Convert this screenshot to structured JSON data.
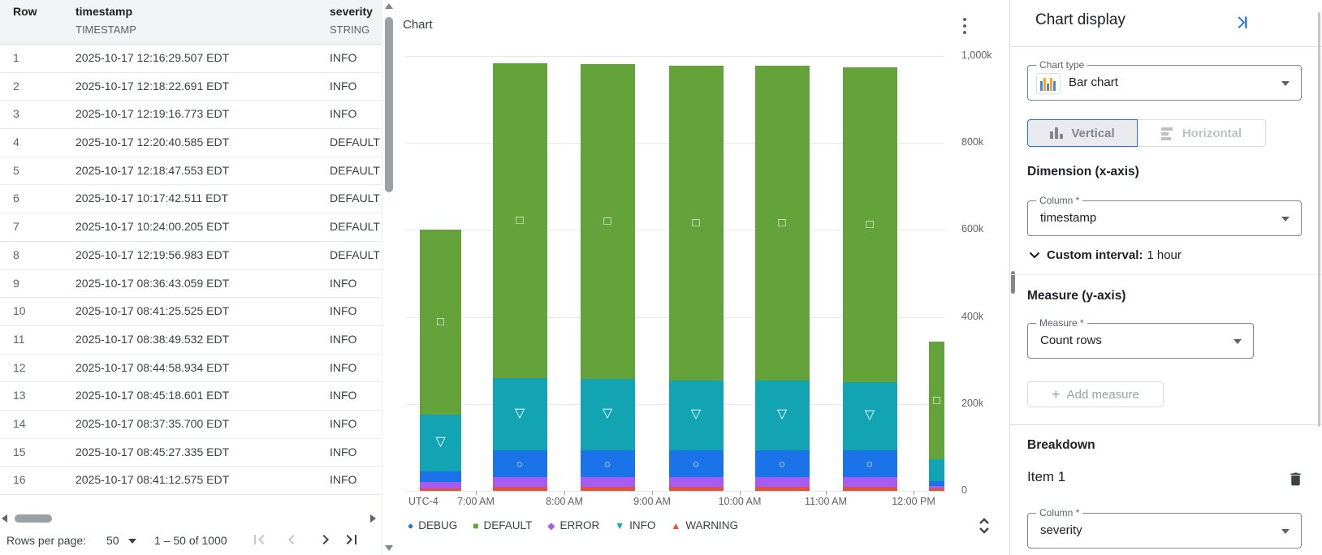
{
  "accent_color": "#1a73e8",
  "table": {
    "columns": [
      {
        "name": "Row",
        "type": ""
      },
      {
        "name": "timestamp",
        "type": "TIMESTAMP"
      },
      {
        "name": "severity",
        "type": "STRING"
      }
    ],
    "rows": [
      [
        "1",
        "2025-10-17 12:16:29.507 EDT",
        "INFO"
      ],
      [
        "2",
        "2025-10-17 12:18:22.691 EDT",
        "INFO"
      ],
      [
        "3",
        "2025-10-17 12:19:16.773 EDT",
        "INFO"
      ],
      [
        "4",
        "2025-10-17 12:20:40.585 EDT",
        "DEFAULT"
      ],
      [
        "5",
        "2025-10-17 12:18:47.553 EDT",
        "DEFAULT"
      ],
      [
        "6",
        "2025-10-17 10:17:42.511 EDT",
        "DEFAULT"
      ],
      [
        "7",
        "2025-10-17 10:24:00.205 EDT",
        "DEFAULT"
      ],
      [
        "8",
        "2025-10-17 12:19:56.983 EDT",
        "DEFAULT"
      ],
      [
        "9",
        "2025-10-17 08:36:43.059 EDT",
        "INFO"
      ],
      [
        "10",
        "2025-10-17 08:41:25.525 EDT",
        "INFO"
      ],
      [
        "11",
        "2025-10-17 08:38:49.532 EDT",
        "INFO"
      ],
      [
        "12",
        "2025-10-17 08:44:58.934 EDT",
        "INFO"
      ],
      [
        "13",
        "2025-10-17 08:45:18.601 EDT",
        "INFO"
      ],
      [
        "14",
        "2025-10-17 08:37:35.700 EDT",
        "INFO"
      ],
      [
        "15",
        "2025-10-17 08:45:27.335 EDT",
        "INFO"
      ],
      [
        "16",
        "2025-10-17 08:41:12.575 EDT",
        "INFO"
      ]
    ],
    "pagination": {
      "rows_per_page_label": "Rows per page:",
      "rows_per_page_value": "50",
      "range_text": "1 – 50 of 1000"
    }
  },
  "chart_panel": {
    "title": "Chart"
  },
  "chart_data": {
    "type": "bar",
    "stacked": true,
    "title": "Chart",
    "x_axis_note": "UTC-4",
    "categories": [
      "6:00 AM",
      "7:00 AM",
      "8:00 AM",
      "9:00 AM",
      "10:00 AM",
      "11:00 AM",
      "12:00 PM"
    ],
    "x_tick_labels": [
      "7:00 AM",
      "8:00 AM",
      "9:00 AM",
      "10:00 AM",
      "11:00 AM",
      "12:00 PM"
    ],
    "interval": "1 hour",
    "unit": "thousands of rows (k)",
    "ylim_k": [
      0,
      1000
    ],
    "y_ticks_k": [
      0,
      200,
      400,
      600,
      800,
      1000
    ],
    "y_tick_labels": [
      "0",
      "200k",
      "400k",
      "600k",
      "800k",
      "1,000k"
    ],
    "grid": true,
    "legend_position": "bottom",
    "stack_order_bottom_to_top": [
      "WARNING",
      "ERROR",
      "DEBUG",
      "INFO",
      "DEFAULT"
    ],
    "series": [
      {
        "name": "DEBUG",
        "color": "#1a73e8",
        "marker": "circle",
        "values_k": [
          25,
          62,
          62,
          62,
          62,
          62,
          11
        ]
      },
      {
        "name": "DEFAULT",
        "color": "#63a33a",
        "marker": "square",
        "values_k": [
          425,
          724,
          724,
          724,
          724,
          724,
          270
        ]
      },
      {
        "name": "ERROR",
        "color": "#a65cf0",
        "marker": "diamond",
        "values_k": [
          15,
          22,
          22,
          22,
          22,
          22,
          6
        ]
      },
      {
        "name": "INFO",
        "color": "#12a4b2",
        "marker": "triangle-down",
        "values_k": [
          130,
          166,
          164,
          160,
          160,
          157,
          50
        ]
      },
      {
        "name": "WARNING",
        "color": "#e8503e",
        "marker": "triangle-up",
        "values_k": [
          5,
          9,
          9,
          9,
          9,
          9,
          6
        ]
      }
    ]
  },
  "settings": {
    "title": "Chart display",
    "chart_type": {
      "label": "Chart type",
      "value": "Bar chart"
    },
    "orientation": {
      "vertical_label": "Vertical",
      "horizontal_label": "Horizontal",
      "selected": "Vertical"
    },
    "dimension": {
      "heading": "Dimension (x-axis)",
      "column_label": "Column *",
      "column_value": "timestamp",
      "custom_interval_label": "Custom interval:",
      "custom_interval_value": "1 hour"
    },
    "measure": {
      "heading": "Measure (y-axis)",
      "measure_label": "Measure *",
      "measure_value": "Count rows",
      "add_measure_label": "Add measure"
    },
    "breakdown": {
      "heading": "Breakdown",
      "item_label": "Item 1",
      "column_label": "Column *",
      "column_value": "severity"
    }
  }
}
